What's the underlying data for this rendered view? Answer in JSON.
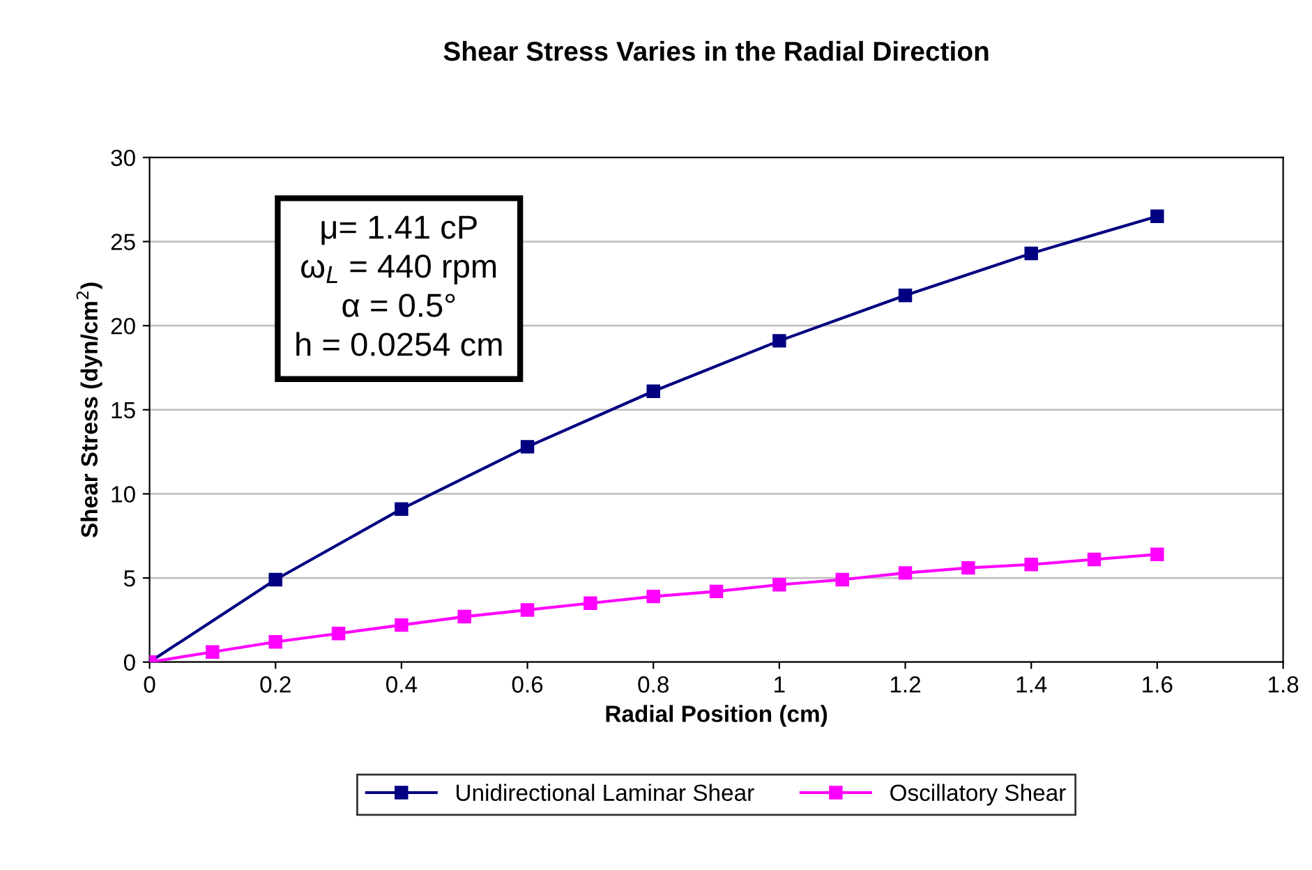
{
  "chart_data": {
    "type": "line",
    "title": "Shear Stress Varies in the Radial Direction",
    "xlabel": "Radial Position (cm)",
    "ylabel": "Shear Stress (dyn/cm$^{2}$)",
    "series": [
      {
        "name": "Unidirectional Laminar Shear",
        "color": "#000080",
        "x": [
          0,
          0.2,
          0.4,
          0.6,
          0.8,
          1.0,
          1.2,
          1.4,
          1.6
        ],
        "values": [
          0,
          4.9,
          9.1,
          12.8,
          16.1,
          19.1,
          21.8,
          24.3,
          26.5
        ]
      },
      {
        "name": "Oscillatory Shear",
        "color": "#ff00ff",
        "x": [
          0,
          0.1,
          0.2,
          0.3,
          0.4,
          0.5,
          0.6,
          0.7,
          0.8,
          0.9,
          1.0,
          1.1,
          1.2,
          1.3,
          1.4,
          1.5,
          1.6
        ],
        "values": [
          0,
          0.6,
          1.2,
          1.7,
          2.2,
          2.7,
          3.1,
          3.5,
          3.9,
          4.2,
          4.6,
          4.9,
          5.3,
          5.6,
          5.8,
          6.1,
          6.4
        ]
      }
    ],
    "xlim": [
      0,
      1.8
    ],
    "xticks": [
      0,
      0.2,
      0.4,
      0.6,
      0.8,
      1,
      1.2,
      1.4,
      1.6,
      1.8
    ],
    "ylim": [
      0,
      30
    ],
    "yticks": [
      0,
      5,
      10,
      15,
      20,
      25,
      30
    ],
    "grid": "y",
    "legend": "bottom",
    "marker": "square",
    "line_style": "solid",
    "annotations": [
      "μ= 1.41 cP\nω$_{L}$ = 440 rpm\nα = 0.5°\nh = 0.0254 cm"
    ]
  }
}
